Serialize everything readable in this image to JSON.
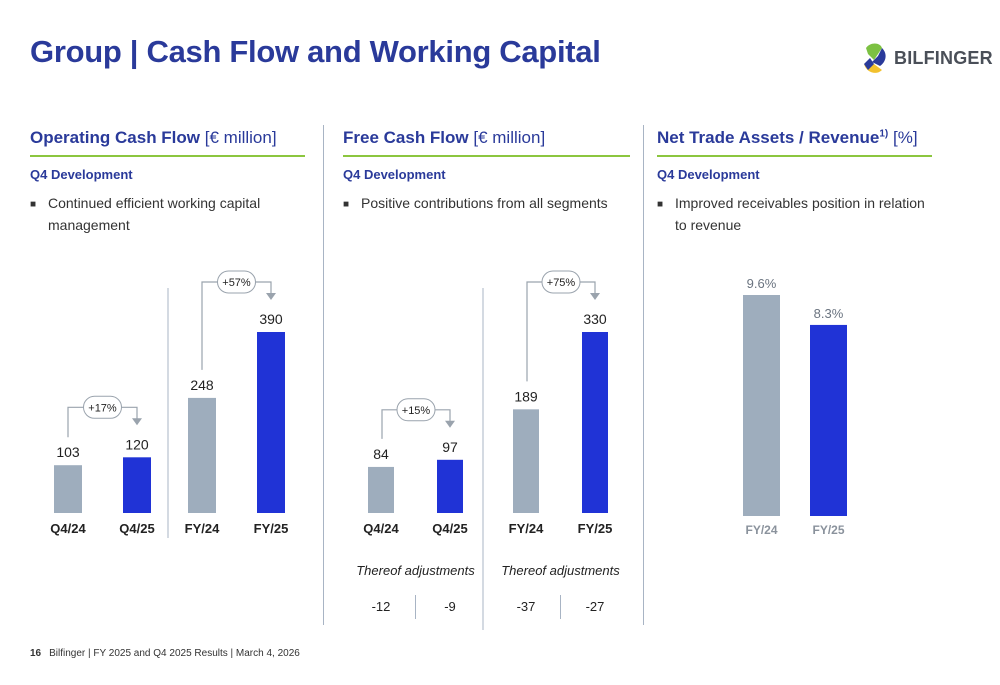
{
  "title": "Group | Cash Flow and Working Capital",
  "logo": {
    "text": "BILFINGER"
  },
  "columns": [
    {
      "heading_bold": "Operating Cash Flow",
      "heading_unit": "[€ million]",
      "subheading": "Q4 Development",
      "bullet": "Continued efficient working capital management"
    },
    {
      "heading_bold": "Free Cash Flow",
      "heading_unit": "[€ million]",
      "subheading": "Q4 Development",
      "bullet": "Positive contributions from all segments"
    },
    {
      "heading_bold": "Net Trade Assets / Revenue",
      "heading_sup": "1)",
      "heading_unit": "[%]",
      "subheading": "Q4 Development",
      "bullet": "Improved receivables position in relation to revenue"
    }
  ],
  "footer": {
    "page": "16",
    "text": "Bilfinger | FY 2025 and Q4 2025 Results | March 4, 2026"
  },
  "colors": {
    "title": "#2a3a9a",
    "accent_green": "#8cc63f",
    "prior": "#9eadbd",
    "current": "#2033d6",
    "separator": "#a8b4c4"
  },
  "chart_data": [
    {
      "type": "bar",
      "title": "Operating Cash Flow",
      "categories": [
        "Q4/24",
        "Q4/25",
        "FY/24",
        "FY/25"
      ],
      "values": [
        103,
        120,
        248,
        390
      ],
      "labels": [
        "103",
        "120",
        "248",
        "390"
      ],
      "changes": [
        {
          "from": 0,
          "to": 1,
          "label": "+17%"
        },
        {
          "from": 2,
          "to": 3,
          "label": "+57%"
        }
      ],
      "adjustments_label": "",
      "adjustments": []
    },
    {
      "type": "bar",
      "title": "Free Cash Flow",
      "categories": [
        "Q4/24",
        "Q4/25",
        "FY/24",
        "FY/25"
      ],
      "values": [
        84,
        97,
        189,
        330
      ],
      "labels": [
        "84",
        "97",
        "189",
        "330"
      ],
      "changes": [
        {
          "from": 0,
          "to": 1,
          "label": "+15%"
        },
        {
          "from": 2,
          "to": 3,
          "label": "+75%"
        }
      ],
      "adjustments_label": "Thereof adjustments",
      "adjustments": [
        "-12",
        "-9",
        "-37",
        "-27"
      ]
    },
    {
      "type": "bar",
      "title": "Net Trade Assets / Revenue",
      "categories": [
        "FY/24",
        "FY/25"
      ],
      "values": [
        9.6,
        8.3
      ],
      "labels": [
        "9.6%",
        "8.3%"
      ],
      "changes": [],
      "adjustments_label": "",
      "adjustments": []
    }
  ]
}
